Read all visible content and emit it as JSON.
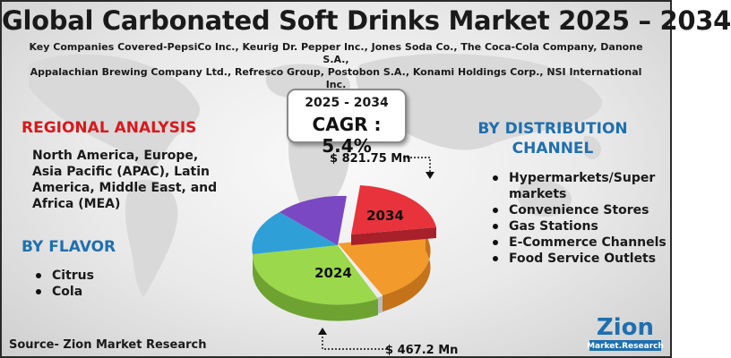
{
  "title": "Global Carbonated Soft Drinks Market 2025 – 2034",
  "companies_line1": "Key Companies Covered-PepsiCo Inc., Keurig Dr. Pepper Inc., Jones Soda Co., The Coca-Cola Company, Danone S.A.,",
  "companies_line2": "Appalachian Brewing Company Ltd., Refresco Group, Postobon S.A., Konami Holdings Corp., NSI International Inc.",
  "cagr": {
    "years": "2025 - 2034",
    "value": "CAGR : 5.4%"
  },
  "regional": {
    "heading": "REGIONAL ANALYSIS",
    "text": "North America, Europe, Asia Pacific (APAC), Latin America, Middle East, and Africa (MEA)"
  },
  "flavor": {
    "heading": "BY FLAVOR",
    "items": [
      "Citrus",
      "Cola"
    ]
  },
  "distribution": {
    "heading_line1": "BY DISTRIBUTION",
    "heading_line2": "CHANNEL",
    "items": [
      "Hypermarkets/Super markets",
      "Convenience Stores",
      "Gas Stations",
      "E-Commerce Channels",
      "Food Service Outlets"
    ]
  },
  "pie": {
    "label_2034": "2034",
    "label_2024": "2024",
    "value_2034": "$ 821.75 Mn",
    "value_2024": "$ 467.2 Mn",
    "colors": [
      "#e8333c",
      "#f39a2c",
      "#9bd84b",
      "#2f9fd8",
      "#7a48c2"
    ]
  },
  "source": "Source- Zion Market Research",
  "logo": {
    "word": "Zion",
    "sub": "Market.Research"
  }
}
